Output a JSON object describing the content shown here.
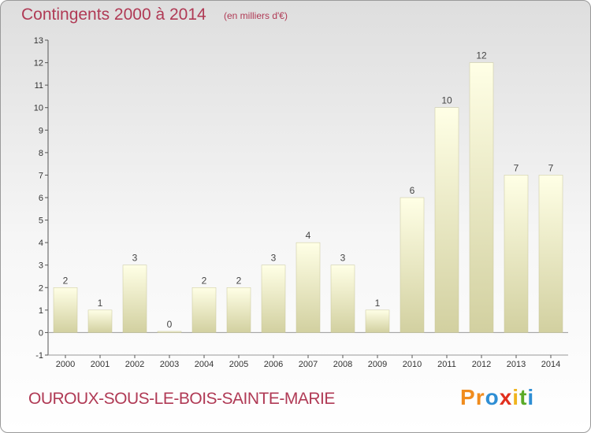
{
  "title": "Contingents 2000 à 2014",
  "subtitle": "(en milliers d'€)",
  "commune": "OUROUX-SOUS-LE-BOIS-SAINTE-MARIE",
  "logo": {
    "letters": [
      "P",
      "r",
      "o",
      "x",
      "i",
      "t",
      "i"
    ],
    "colors": [
      "#f08c1e",
      "#f08c1e",
      "#2e8ed4",
      "#e1301e",
      "#f0b41e",
      "#5aaa28",
      "#2e8ed4"
    ]
  },
  "colors": {
    "title": "#b03a55",
    "bar_light": "#ffffe6",
    "bar_dark": "#d2d0a0",
    "axis": "#555555"
  },
  "chart_data": {
    "type": "bar",
    "categories": [
      "2000",
      "2001",
      "2002",
      "2003",
      "2004",
      "2005",
      "2006",
      "2007",
      "2008",
      "2009",
      "2010",
      "2011",
      "2012",
      "2013",
      "2014"
    ],
    "values": [
      2,
      1,
      3,
      0,
      2,
      2,
      3,
      4,
      3,
      1,
      6,
      10,
      12,
      7,
      7
    ],
    "data_labels": [
      "2",
      "1",
      "3",
      "0",
      "2",
      "2",
      "3",
      "4",
      "3",
      "1",
      "6",
      "10",
      "12",
      "7",
      "7"
    ],
    "ylim": [
      -1,
      13
    ],
    "yticks": [
      "-1",
      "0",
      "1",
      "2",
      "3",
      "4",
      "5",
      "6",
      "7",
      "8",
      "9",
      "10",
      "11",
      "12",
      "13"
    ],
    "xlabel": "",
    "ylabel": "",
    "grid": false
  }
}
